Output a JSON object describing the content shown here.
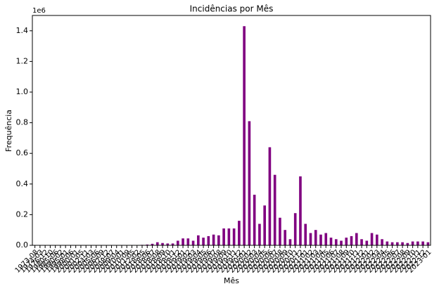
{
  "chart_data": {
    "type": "bar",
    "title": "Incidências por Mês",
    "xlabel": "Mês",
    "ylabel": "Frequência",
    "offset_label": "1e6",
    "categories": [
      "1973-08",
      "1974-03",
      "1976-12",
      "1980-10",
      "1985-06",
      "1990-02",
      "1995-01",
      "1998-06",
      "2000-01",
      "2001-05",
      "2002-11",
      "2004-03",
      "2005-06",
      "2006-09",
      "2007-12",
      "2008-07",
      "2009-04",
      "2010-01",
      "2010-09",
      "2011-05",
      "2012-02",
      "2018-05",
      "2018-06",
      "2018-07",
      "2018-08",
      "2018-09",
      "2018-10",
      "2018-11",
      "2018-12",
      "2019-01",
      "2019-02",
      "2019-03",
      "2019-04",
      "2019-05",
      "2019-06",
      "2019-07",
      "2019-08",
      "2019-09",
      "2019-10",
      "2019-11",
      "2019-12",
      "2020-01",
      "2020-02",
      "2020-03",
      "2020-04",
      "2020-05",
      "2020-06",
      "2020-07",
      "2020-08",
      "2020-09",
      "2020-10",
      "2020-11",
      "2020-12",
      "2021-01",
      "2021-02",
      "2021-03",
      "2021-04",
      "2021-05",
      "2021-06",
      "2021-07",
      "2021-08",
      "2021-09",
      "2021-10",
      "2021-11",
      "2021-12",
      "2022-01",
      "2022-02",
      "2022-03",
      "2022-04",
      "2022-05",
      "2022-06",
      "2022-07",
      "2022-08",
      "2022-09",
      "2022-10",
      "2022-11",
      "2022-12",
      "2023-01"
    ],
    "values": [
      0,
      0,
      0,
      0,
      0,
      0,
      0,
      0,
      0,
      0,
      0,
      0,
      0,
      0,
      0,
      0,
      0,
      0,
      0,
      0,
      0,
      3000,
      5000,
      10000,
      20000,
      15000,
      12000,
      12000,
      30000,
      45000,
      45000,
      30000,
      65000,
      50000,
      60000,
      70000,
      65000,
      110000,
      110000,
      110000,
      160000,
      1430000,
      810000,
      330000,
      140000,
      260000,
      640000,
      460000,
      180000,
      100000,
      40000,
      210000,
      450000,
      140000,
      80000,
      100000,
      70000,
      80000,
      50000,
      40000,
      30000,
      50000,
      60000,
      80000,
      40000,
      30000,
      80000,
      70000,
      40000,
      25000,
      20000,
      20000,
      20000,
      15000,
      25000,
      25000,
      25000,
      20000
    ],
    "color": "#800080",
    "ylim": [
      0,
      1500000
    ],
    "yticks": [
      {
        "value": 0,
        "label": "0.0"
      },
      {
        "value": 200000,
        "label": "0.2"
      },
      {
        "value": 400000,
        "label": "0.4"
      },
      {
        "value": 600000,
        "label": "0.6"
      },
      {
        "value": 800000,
        "label": "0.8"
      },
      {
        "value": 1000000,
        "label": "1.0"
      },
      {
        "value": 1200000,
        "label": "1.2"
      },
      {
        "value": 1400000,
        "label": "1.4"
      }
    ]
  }
}
